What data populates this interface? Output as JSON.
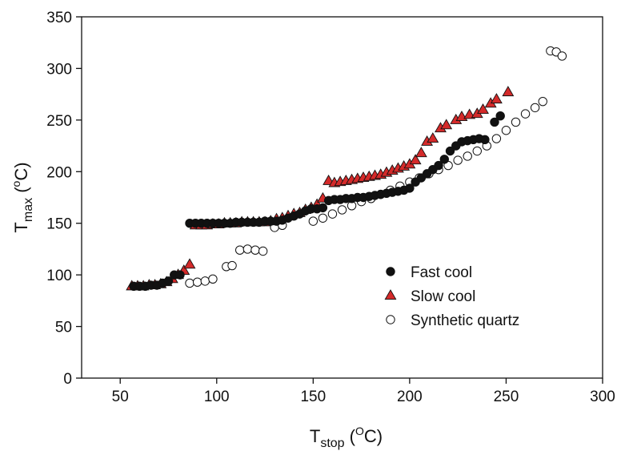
{
  "chart_data": {
    "type": "scatter",
    "title": "",
    "xlabel": {
      "main": "T",
      "sub": "stop",
      "sup": "O",
      "unit": "C"
    },
    "ylabel": {
      "main": "T",
      "sub": "max",
      "sup": "o",
      "unit": "C"
    },
    "xlim": [
      30,
      300
    ],
    "ylim": [
      0,
      350
    ],
    "xticks": [
      50,
      100,
      150,
      200,
      250,
      300
    ],
    "yticks": [
      0,
      50,
      100,
      150,
      200,
      250,
      300,
      350
    ],
    "grid": false,
    "legend_position": "lower-right",
    "series": [
      {
        "name": "Fast cool",
        "marker": "circle",
        "color": "#111111",
        "fill": "#111111",
        "points": [
          [
            57,
            89
          ],
          [
            60,
            89
          ],
          [
            63,
            89
          ],
          [
            66,
            90
          ],
          [
            69,
            90
          ],
          [
            72,
            92
          ],
          [
            75,
            94
          ],
          [
            78,
            100
          ],
          [
            81,
            100
          ],
          [
            86,
            150
          ],
          [
            89,
            150
          ],
          [
            92,
            150
          ],
          [
            95,
            150
          ],
          [
            98,
            150
          ],
          [
            101,
            150
          ],
          [
            104,
            150
          ],
          [
            107,
            150
          ],
          [
            110,
            151
          ],
          [
            113,
            151
          ],
          [
            116,
            151
          ],
          [
            119,
            151
          ],
          [
            122,
            151
          ],
          [
            125,
            152
          ],
          [
            128,
            152
          ],
          [
            131,
            152
          ],
          [
            134,
            153
          ],
          [
            137,
            155
          ],
          [
            140,
            157
          ],
          [
            143,
            159
          ],
          [
            146,
            162
          ],
          [
            149,
            164
          ],
          [
            152,
            164
          ],
          [
            155,
            165
          ],
          [
            158,
            172
          ],
          [
            161,
            173
          ],
          [
            164,
            173
          ],
          [
            167,
            174
          ],
          [
            170,
            174
          ],
          [
            173,
            175
          ],
          [
            176,
            175
          ],
          [
            179,
            176
          ],
          [
            182,
            177
          ],
          [
            185,
            178
          ],
          [
            188,
            179
          ],
          [
            191,
            180
          ],
          [
            194,
            181
          ],
          [
            197,
            182
          ],
          [
            200,
            184
          ],
          [
            203,
            190
          ],
          [
            206,
            194
          ],
          [
            209,
            198
          ],
          [
            212,
            202
          ],
          [
            215,
            206
          ],
          [
            218,
            212
          ],
          [
            221,
            220
          ],
          [
            224,
            225
          ],
          [
            227,
            229
          ],
          [
            230,
            230
          ],
          [
            233,
            231
          ],
          [
            236,
            232
          ],
          [
            239,
            231
          ],
          [
            244,
            248
          ],
          [
            247,
            254
          ]
        ]
      },
      {
        "name": "Slow cool",
        "marker": "triangle",
        "color": "#111111",
        "fill": "#d42a2a",
        "points": [
          [
            56,
            89
          ],
          [
            59,
            89
          ],
          [
            62,
            89
          ],
          [
            65,
            90
          ],
          [
            68,
            90
          ],
          [
            71,
            91
          ],
          [
            74,
            93
          ],
          [
            77,
            96
          ],
          [
            80,
            100
          ],
          [
            83,
            104
          ],
          [
            86,
            110
          ],
          [
            89,
            148
          ],
          [
            92,
            148
          ],
          [
            95,
            148
          ],
          [
            98,
            149
          ],
          [
            101,
            149
          ],
          [
            104,
            150
          ],
          [
            107,
            150
          ],
          [
            110,
            150
          ],
          [
            113,
            151
          ],
          [
            116,
            151
          ],
          [
            119,
            151
          ],
          [
            122,
            151
          ],
          [
            125,
            151
          ],
          [
            128,
            152
          ],
          [
            131,
            154
          ],
          [
            134,
            155
          ],
          [
            137,
            157
          ],
          [
            140,
            159
          ],
          [
            143,
            160
          ],
          [
            146,
            163
          ],
          [
            149,
            165
          ],
          [
            152,
            168
          ],
          [
            155,
            174
          ],
          [
            158,
            191
          ],
          [
            161,
            189
          ],
          [
            164,
            190
          ],
          [
            167,
            191
          ],
          [
            170,
            192
          ],
          [
            173,
            193
          ],
          [
            176,
            194
          ],
          [
            179,
            195
          ],
          [
            182,
            196
          ],
          [
            185,
            197
          ],
          [
            188,
            199
          ],
          [
            191,
            201
          ],
          [
            194,
            203
          ],
          [
            197,
            205
          ],
          [
            200,
            207
          ],
          [
            203,
            211
          ],
          [
            206,
            218
          ],
          [
            209,
            229
          ],
          [
            212,
            232
          ],
          [
            216,
            242
          ],
          [
            219,
            245
          ],
          [
            224,
            250
          ],
          [
            227,
            253
          ],
          [
            231,
            255
          ],
          [
            235,
            256
          ],
          [
            238,
            260
          ],
          [
            242,
            266
          ],
          [
            245,
            270
          ],
          [
            251,
            277
          ]
        ]
      },
      {
        "name": "Synthetic quartz",
        "marker": "circle-open",
        "color": "#111111",
        "fill": "#ffffff",
        "points": [
          [
            86,
            92
          ],
          [
            90,
            93
          ],
          [
            94,
            94
          ],
          [
            98,
            96
          ],
          [
            105,
            108
          ],
          [
            108,
            109
          ],
          [
            112,
            124
          ],
          [
            116,
            125
          ],
          [
            120,
            124
          ],
          [
            124,
            123
          ],
          [
            130,
            146
          ],
          [
            134,
            148
          ],
          [
            150,
            152
          ],
          [
            155,
            155
          ],
          [
            160,
            159
          ],
          [
            165,
            163
          ],
          [
            170,
            167
          ],
          [
            175,
            171
          ],
          [
            180,
            174
          ],
          [
            185,
            178
          ],
          [
            190,
            182
          ],
          [
            195,
            186
          ],
          [
            200,
            190
          ],
          [
            205,
            194
          ],
          [
            210,
            198
          ],
          [
            215,
            202
          ],
          [
            220,
            206
          ],
          [
            225,
            211
          ],
          [
            230,
            215
          ],
          [
            235,
            220
          ],
          [
            240,
            225
          ],
          [
            245,
            232
          ],
          [
            250,
            240
          ],
          [
            255,
            248
          ],
          [
            260,
            256
          ],
          [
            265,
            262
          ],
          [
            269,
            268
          ],
          [
            273,
            317
          ],
          [
            276,
            316
          ],
          [
            279,
            312
          ]
        ]
      }
    ]
  }
}
